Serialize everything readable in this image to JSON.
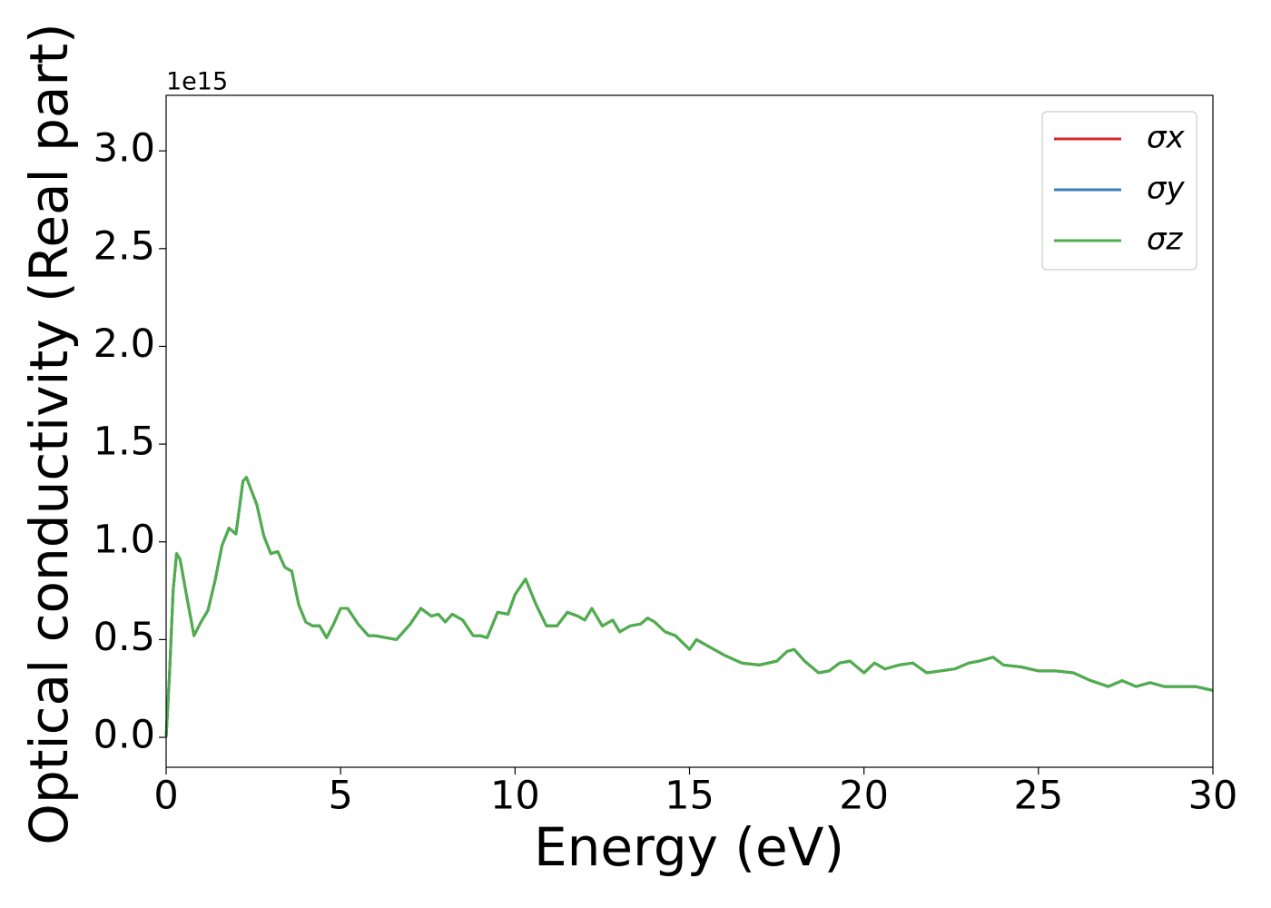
{
  "chart_data": {
    "type": "line",
    "xlabel": "Energy (eV)",
    "ylabel": "Optical conductivity (Real part)",
    "y_offset_label": "1e15",
    "x": [
      0,
      0.1,
      0.2,
      0.3,
      0.4,
      0.6,
      0.8,
      1.0,
      1.2,
      1.4,
      1.6,
      1.8,
      2.0,
      2.2,
      2.3,
      2.6,
      2.8,
      3.0,
      3.2,
      3.4,
      3.6,
      3.8,
      4.0,
      4.2,
      4.4,
      4.6,
      4.8,
      5.0,
      5.2,
      5.5,
      5.8,
      6.0,
      6.3,
      6.6,
      7.0,
      7.3,
      7.6,
      7.8,
      8.0,
      8.2,
      8.5,
      8.8,
      9.0,
      9.2,
      9.5,
      9.8,
      10.0,
      10.3,
      10.6,
      10.9,
      11.2,
      11.5,
      11.8,
      12.0,
      12.2,
      12.5,
      12.8,
      13.0,
      13.3,
      13.6,
      13.8,
      14.0,
      14.3,
      14.6,
      15.0,
      15.2,
      15.5,
      16.0,
      16.5,
      17.0,
      17.5,
      17.8,
      18.0,
      18.3,
      18.7,
      19.0,
      19.3,
      19.6,
      20.0,
      20.3,
      20.6,
      21.0,
      21.4,
      21.8,
      22.2,
      22.6,
      23.0,
      23.3,
      23.7,
      24.0,
      24.5,
      25.0,
      25.5,
      26.0,
      26.5,
      27.0,
      27.4,
      27.8,
      28.2,
      28.6,
      29.0,
      29.5,
      30.0
    ],
    "series": [
      {
        "name": "σx",
        "color": "#d62728",
        "values": [
          0,
          0.33,
          0.75,
          0.94,
          0.91,
          0.71,
          0.52,
          0.59,
          0.65,
          0.8,
          0.98,
          1.07,
          1.04,
          1.31,
          1.33,
          1.19,
          1.03,
          0.94,
          0.95,
          0.87,
          0.85,
          0.68,
          0.59,
          0.57,
          0.57,
          0.51,
          0.58,
          0.66,
          0.66,
          0.58,
          0.52,
          0.52,
          0.51,
          0.5,
          0.58,
          0.66,
          0.62,
          0.63,
          0.59,
          0.63,
          0.6,
          0.52,
          0.52,
          0.51,
          0.64,
          0.63,
          0.73,
          0.81,
          0.68,
          0.57,
          0.57,
          0.64,
          0.62,
          0.6,
          0.66,
          0.57,
          0.6,
          0.54,
          0.57,
          0.58,
          0.61,
          0.59,
          0.54,
          0.52,
          0.45,
          0.5,
          0.47,
          0.42,
          0.38,
          0.37,
          0.39,
          0.44,
          0.45,
          0.39,
          0.33,
          0.34,
          0.38,
          0.39,
          0.33,
          0.38,
          0.35,
          0.37,
          0.38,
          0.33,
          0.34,
          0.35,
          0.38,
          0.39,
          0.41,
          0.37,
          0.36,
          0.34,
          0.34,
          0.33,
          0.29,
          0.26,
          0.29,
          0.26,
          0.28,
          0.26,
          0.26,
          0.26,
          0.24
        ]
      },
      {
        "name": "σy",
        "color": "#3a7eb8",
        "values": [
          0,
          0.33,
          0.75,
          0.94,
          0.91,
          0.71,
          0.52,
          0.59,
          0.65,
          0.8,
          0.98,
          1.07,
          1.04,
          1.31,
          1.33,
          1.19,
          1.03,
          0.94,
          0.95,
          0.87,
          0.85,
          0.68,
          0.59,
          0.57,
          0.57,
          0.51,
          0.58,
          0.66,
          0.66,
          0.58,
          0.52,
          0.52,
          0.51,
          0.5,
          0.58,
          0.66,
          0.62,
          0.63,
          0.59,
          0.63,
          0.6,
          0.52,
          0.52,
          0.51,
          0.64,
          0.63,
          0.73,
          0.81,
          0.68,
          0.57,
          0.57,
          0.64,
          0.62,
          0.6,
          0.66,
          0.57,
          0.6,
          0.54,
          0.57,
          0.58,
          0.61,
          0.59,
          0.54,
          0.52,
          0.45,
          0.5,
          0.47,
          0.42,
          0.38,
          0.37,
          0.39,
          0.44,
          0.45,
          0.39,
          0.33,
          0.34,
          0.38,
          0.39,
          0.33,
          0.38,
          0.35,
          0.37,
          0.38,
          0.33,
          0.34,
          0.35,
          0.38,
          0.39,
          0.41,
          0.37,
          0.36,
          0.34,
          0.34,
          0.33,
          0.29,
          0.26,
          0.29,
          0.26,
          0.28,
          0.26,
          0.26,
          0.26,
          0.24
        ]
      },
      {
        "name": "σz",
        "color": "#4daf4a",
        "values": [
          0,
          0.33,
          0.75,
          0.94,
          0.91,
          0.71,
          0.52,
          0.59,
          0.65,
          0.8,
          0.98,
          1.07,
          1.04,
          1.31,
          1.33,
          1.19,
          1.03,
          0.94,
          0.95,
          0.87,
          0.85,
          0.68,
          0.59,
          0.57,
          0.57,
          0.51,
          0.58,
          0.66,
          0.66,
          0.58,
          0.52,
          0.52,
          0.51,
          0.5,
          0.58,
          0.66,
          0.62,
          0.63,
          0.59,
          0.63,
          0.6,
          0.52,
          0.52,
          0.51,
          0.64,
          0.63,
          0.73,
          0.81,
          0.68,
          0.57,
          0.57,
          0.64,
          0.62,
          0.6,
          0.66,
          0.57,
          0.6,
          0.54,
          0.57,
          0.58,
          0.61,
          0.59,
          0.54,
          0.52,
          0.45,
          0.5,
          0.47,
          0.42,
          0.38,
          0.37,
          0.39,
          0.44,
          0.45,
          0.39,
          0.33,
          0.34,
          0.38,
          0.39,
          0.33,
          0.38,
          0.35,
          0.37,
          0.38,
          0.33,
          0.34,
          0.35,
          0.38,
          0.39,
          0.41,
          0.37,
          0.36,
          0.34,
          0.34,
          0.33,
          0.29,
          0.26,
          0.29,
          0.26,
          0.28,
          0.26,
          0.26,
          0.26,
          0.24
        ]
      }
    ],
    "xlim": [
      0,
      30
    ],
    "xticks": [
      0,
      5,
      10,
      15,
      20,
      25,
      30
    ],
    "ylim": [
      -0.153,
      3.284
    ],
    "yticks": [
      {
        "value": 0,
        "label": "0.0"
      },
      0.5,
      {
        "value": 1,
        "label": "1.0"
      },
      1.5,
      {
        "value": 2,
        "label": "2.0"
      },
      2.5,
      {
        "value": 3,
        "label": "3.0"
      }
    ],
    "grid": false,
    "legend": "upper right"
  }
}
